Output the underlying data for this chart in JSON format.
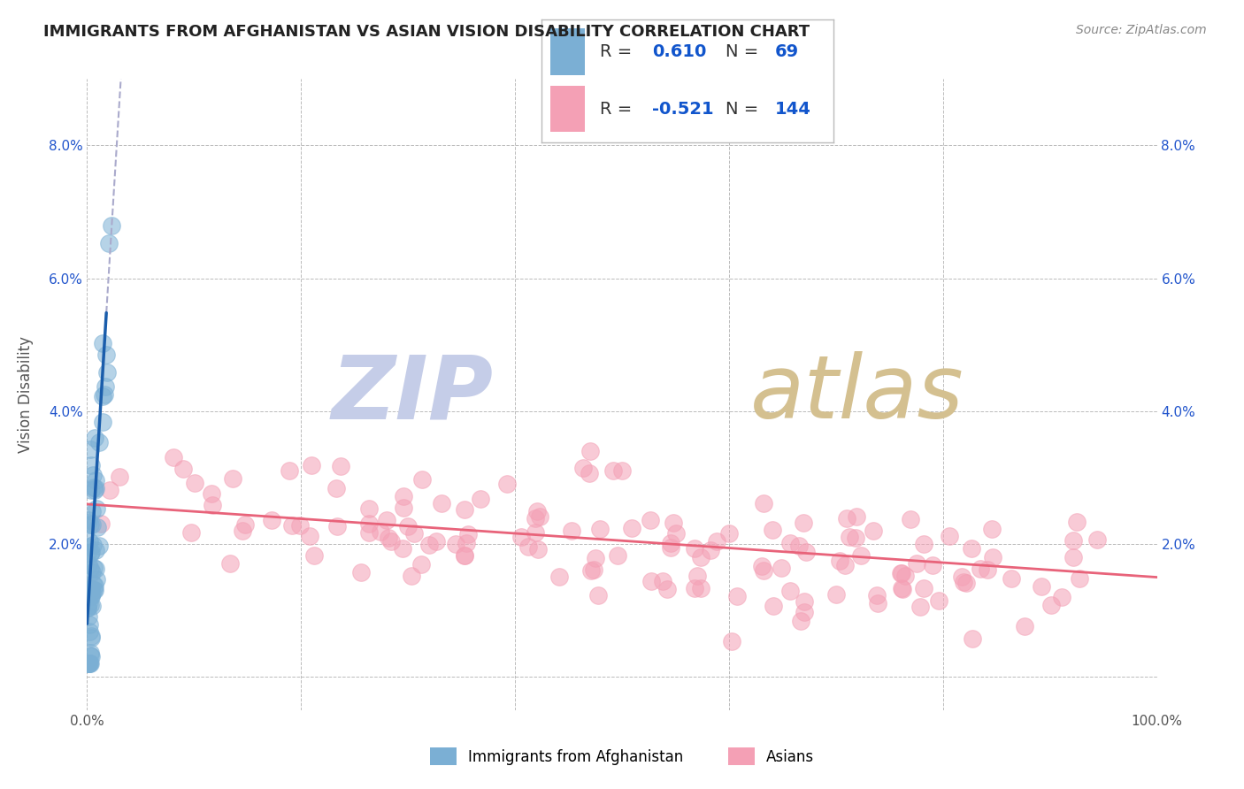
{
  "title": "IMMIGRANTS FROM AFGHANISTAN VS ASIAN VISION DISABILITY CORRELATION CHART",
  "source": "Source: ZipAtlas.com",
  "ylabel": "Vision Disability",
  "watermark": "ZIPatlas",
  "xlim": [
    0.0,
    1.0
  ],
  "ylim": [
    -0.005,
    0.09
  ],
  "blue_R": "0.610",
  "blue_N": "69",
  "pink_R": "-0.521",
  "pink_N": "144",
  "blue_color": "#7BAFD4",
  "pink_color": "#F4A0B5",
  "blue_line_color": "#1A5DAB",
  "pink_line_color": "#E8637A",
  "dashed_line_color": "#AAAACC",
  "grid_color": "#BBBBBB",
  "background_color": "#FFFFFF",
  "title_color": "#222222",
  "source_color": "#888888",
  "watermark_zip_color": "#C8C8DC",
  "watermark_atlas_color": "#D8C8A8",
  "legend_label_color": "#333333",
  "legend_value_color": "#1155CC",
  "ytick_color": "#2255CC",
  "xtick_color": "#555555"
}
